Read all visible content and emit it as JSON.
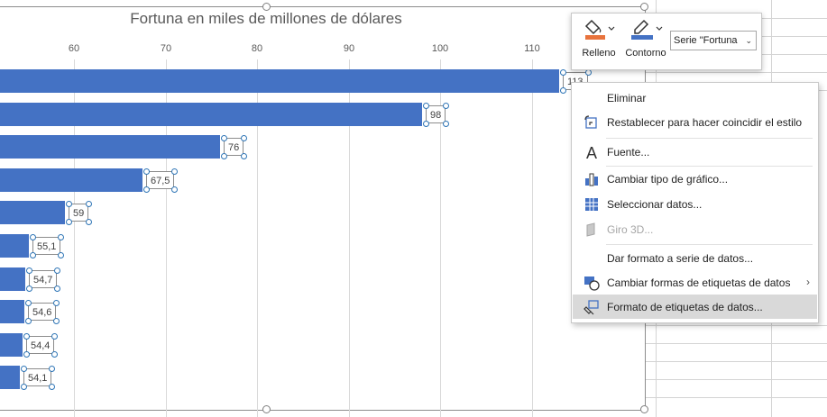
{
  "chart_data": {
    "type": "bar",
    "title": "Fortuna en miles de millones de dólares",
    "x_ticks": [
      "60",
      "70",
      "80",
      "90",
      "100",
      "110"
    ],
    "values": [
      113,
      98,
      76,
      67.5,
      59,
      55.1,
      54.7,
      54.6,
      54.4,
      54.1
    ],
    "data_labels": [
      "113",
      "98",
      "76",
      "67,5",
      "59",
      "55,1",
      "54,7",
      "54,6",
      "54,4",
      "54,1"
    ],
    "xlabel": "",
    "ylabel": "",
    "bar_color": "#4472c4",
    "grid": true,
    "legend": "none"
  },
  "mini_toolbar": {
    "fill_label": "Relleno",
    "outline_label": "Contorno",
    "series_value": "Serie \"Fortuna",
    "fill_color": "#e8733d",
    "outline_color": "#4472c4",
    "fill_icon": "paint-bucket-icon",
    "outline_icon": "pen-icon",
    "dropdown_icon": "chevron-down-icon"
  },
  "context_menu": {
    "items": [
      {
        "label": "Eliminar",
        "icon": "",
        "disabled": false
      },
      {
        "label": "Restablecer para hacer coincidir el estilo",
        "icon": "reset-style-icon",
        "disabled": false
      },
      {
        "label": "Fuente...",
        "icon": "font-icon",
        "disabled": false
      },
      {
        "label": "Cambiar tipo de gráfico...",
        "icon": "chart-type-icon",
        "disabled": false
      },
      {
        "label": "Seleccionar datos...",
        "icon": "select-data-icon",
        "disabled": false
      },
      {
        "label": "Giro 3D...",
        "icon": "rotate-3d-icon",
        "disabled": true
      },
      {
        "label": "Dar formato a serie de datos...",
        "icon": "",
        "disabled": false
      },
      {
        "label": "Cambiar formas de etiquetas de datos",
        "icon": "label-shapes-icon",
        "disabled": false,
        "submenu": true
      },
      {
        "label": "Formato de etiquetas de datos...",
        "icon": "format-labels-icon",
        "disabled": false,
        "highlighted": true
      }
    ]
  }
}
